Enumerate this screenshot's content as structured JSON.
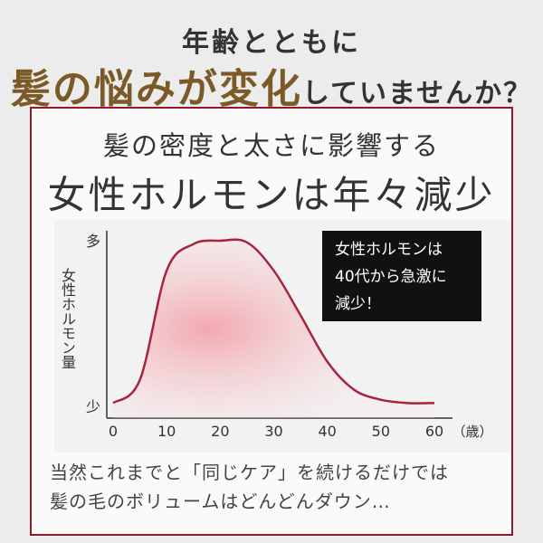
{
  "header": {
    "line1": "年齢とともに",
    "line2_highlight": "髪の悩みが変化",
    "line2_rest": "していませんか？"
  },
  "box": {
    "subtitle": "髪の密度と太さに影響する",
    "title": "女性ホルモンは年々減少"
  },
  "chart_data": {
    "type": "line",
    "ylabel": "女性ホルモン量",
    "xlabel": "（歳）",
    "x": [
      0,
      5,
      10,
      15,
      20,
      25,
      30,
      35,
      40,
      45,
      50,
      55,
      60
    ],
    "series": [
      {
        "color": "#a8243c",
        "values": [
          2,
          16,
          82,
          98,
          100,
          99,
          82,
          55,
          27,
          10,
          4,
          2,
          2
        ]
      }
    ],
    "xlim": [
      0,
      60
    ],
    "xticks": [
      0,
      10,
      20,
      30,
      40,
      50,
      60
    ],
    "ylim": [
      0,
      100
    ],
    "yticks": [
      {
        "value": 0,
        "label": "少"
      },
      {
        "value": 100,
        "label": "多"
      }
    ],
    "annotation": [
      "女性ホルモンは",
      "40代から急激に",
      "減少！"
    ]
  },
  "footer": {
    "lines": [
      "当然これまでと「同じケア」を続けるだけでは",
      "髪の毛のボリュームはどんどんダウン…"
    ]
  }
}
